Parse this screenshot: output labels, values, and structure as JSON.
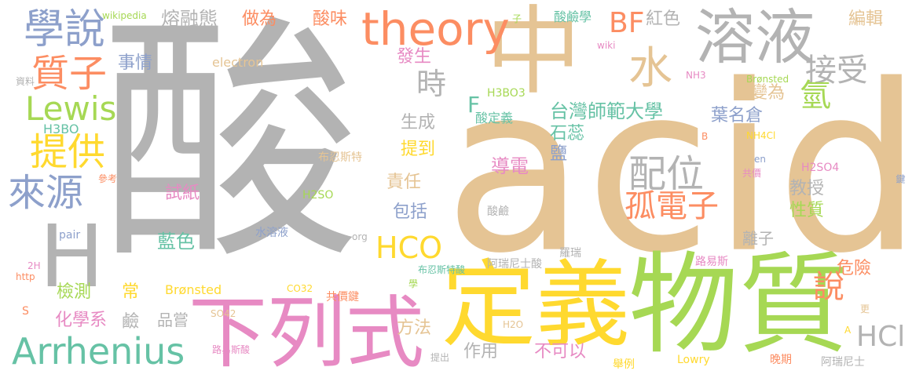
{
  "palette": {
    "gray": "#b3b3b3",
    "tan": "#e5c494",
    "green": "#a6d854",
    "pink": "#e78ac3",
    "blue": "#8da0cb",
    "orange": "#fc8d62",
    "teal": "#66c2a5",
    "yellow": "#ffd92f"
  },
  "words": [
    {
      "text": "酸",
      "color": "gray"
    },
    {
      "text": "acid",
      "color": "tan"
    },
    {
      "text": "中",
      "color": "tan"
    },
    {
      "text": "定義",
      "color": "yellow"
    },
    {
      "text": "物質",
      "color": "green"
    },
    {
      "text": "下列式",
      "color": "pink"
    },
    {
      "text": "溶液",
      "color": "gray"
    },
    {
      "text": "H",
      "color": "gray"
    },
    {
      "text": "水",
      "color": "tan"
    },
    {
      "text": "theory",
      "color": "orange"
    },
    {
      "text": "Arrhenius",
      "color": "teal"
    },
    {
      "text": "學說",
      "color": "blue"
    },
    {
      "text": "質子",
      "color": "orange"
    },
    {
      "text": "Lewis",
      "color": "green"
    },
    {
      "text": "提供",
      "color": "yellow"
    },
    {
      "text": "來源",
      "color": "blue"
    },
    {
      "text": "接受",
      "color": "gray"
    },
    {
      "text": "配位",
      "color": "gray"
    },
    {
      "text": "孤電子",
      "color": "orange"
    },
    {
      "text": "HCO",
      "color": "yellow"
    },
    {
      "text": "HCl",
      "color": "gray"
    },
    {
      "text": "BF",
      "color": "orange"
    },
    {
      "text": "時",
      "color": "gray"
    },
    {
      "text": "氫",
      "color": "green"
    },
    {
      "text": "說",
      "color": "orange"
    },
    {
      "text": "酸味",
      "color": "orange"
    },
    {
      "text": "熔融態",
      "color": "gray"
    },
    {
      "text": "做為",
      "color": "orange"
    },
    {
      "text": "紅色",
      "color": "gray"
    },
    {
      "text": "編輯",
      "color": "tan"
    },
    {
      "text": "台灣師範大學",
      "color": "teal"
    },
    {
      "text": "F",
      "color": "teal"
    },
    {
      "text": "葉名倉",
      "color": "blue"
    },
    {
      "text": "變為",
      "color": "tan"
    },
    {
      "text": "石蕊",
      "color": "teal"
    },
    {
      "text": "鹽",
      "color": "blue"
    },
    {
      "text": "導電",
      "color": "pink"
    },
    {
      "text": "發生",
      "color": "pink"
    },
    {
      "text": "事情",
      "color": "blue"
    },
    {
      "text": "生成",
      "color": "gray"
    },
    {
      "text": "提到",
      "color": "yellow"
    },
    {
      "text": "責任",
      "color": "tan"
    },
    {
      "text": "包括",
      "color": "blue"
    },
    {
      "text": "教授",
      "color": "gray"
    },
    {
      "text": "性質",
      "color": "green"
    },
    {
      "text": "試紙",
      "color": "pink"
    },
    {
      "text": "藍色",
      "color": "teal"
    },
    {
      "text": "檢測",
      "color": "green"
    },
    {
      "text": "化學系",
      "color": "pink"
    },
    {
      "text": "危險",
      "color": "orange"
    },
    {
      "text": "離子",
      "color": "gray"
    },
    {
      "text": "方法",
      "color": "tan"
    },
    {
      "text": "作用",
      "color": "gray"
    },
    {
      "text": "不可以",
      "color": "pink"
    },
    {
      "text": "酸定義",
      "color": "teal"
    },
    {
      "text": "酸鹼學",
      "color": "teal"
    },
    {
      "text": "wikipedia",
      "color": "green"
    },
    {
      "text": "electron",
      "color": "tan"
    },
    {
      "text": "H3BO3",
      "color": "green"
    },
    {
      "text": "H3BO",
      "color": "teal"
    },
    {
      "text": "資料",
      "color": "gray"
    },
    {
      "text": "布忍斯特",
      "color": "tan"
    },
    {
      "text": "參考",
      "color": "orange"
    },
    {
      "text": "H2SO",
      "color": "green"
    },
    {
      "text": "pair",
      "color": "blue"
    },
    {
      "text": "水溶液",
      "color": "blue"
    },
    {
      "text": "org",
      "color": "gray"
    },
    {
      "text": "2H",
      "color": "pink"
    },
    {
      "text": "http",
      "color": "orange"
    },
    {
      "text": "S",
      "color": "orange"
    },
    {
      "text": "常",
      "color": "yellow"
    },
    {
      "text": "鹼",
      "color": "gray"
    },
    {
      "text": "品嘗",
      "color": "gray"
    },
    {
      "text": "Brønsted",
      "color": "yellow"
    },
    {
      "text": "SO42",
      "color": "tan"
    },
    {
      "text": "路易斯酸",
      "color": "pink"
    },
    {
      "text": "CO32",
      "color": "yellow"
    },
    {
      "text": "共價鍵",
      "color": "orange"
    },
    {
      "text": "學",
      "color": "green"
    },
    {
      "text": "布忍斯特酸",
      "color": "teal"
    },
    {
      "text": "阿瑞尼士酸",
      "color": "gray"
    },
    {
      "text": "酸鹼",
      "color": "gray"
    },
    {
      "text": "羅瑞",
      "color": "gray"
    },
    {
      "text": "路易斯",
      "color": "pink"
    },
    {
      "text": "提出",
      "color": "gray"
    },
    {
      "text": "H2O",
      "color": "tan"
    },
    {
      "text": "舉例",
      "color": "yellow"
    },
    {
      "text": "Lowry",
      "color": "yellow"
    },
    {
      "text": "晚期",
      "color": "orange"
    },
    {
      "text": "阿瑞尼士",
      "color": "gray"
    },
    {
      "text": "en",
      "color": "blue"
    },
    {
      "text": "共價",
      "color": "pink"
    },
    {
      "text": "A",
      "color": "yellow"
    },
    {
      "text": "更",
      "color": "tan"
    },
    {
      "text": "鍵",
      "color": "blue"
    },
    {
      "text": "H2SO4",
      "color": "pink"
    },
    {
      "text": "NH4Cl",
      "color": "yellow"
    },
    {
      "text": "B",
      "color": "orange"
    },
    {
      "text": "Brønsted",
      "color": "green"
    },
    {
      "text": "NH3",
      "color": "pink"
    },
    {
      "text": "wiki",
      "color": "pink"
    },
    {
      "text": "子",
      "color": "green"
    }
  ]
}
